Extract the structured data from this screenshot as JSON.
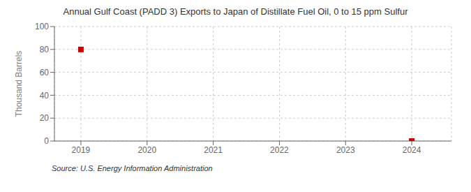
{
  "chart_data": {
    "type": "scatter",
    "title": "Annual Gulf Coast (PADD 3) Exports to Japan of Distillate Fuel Oil, 0 to 15 ppm Sulfur",
    "ylabel": "Thousand Barrels",
    "annotations": [
      "Source: U.S. Energy Information Administration"
    ],
    "x": [
      2019,
      2024
    ],
    "values": [
      80,
      0
    ],
    "color": "#cc0000",
    "marker": "square",
    "xlim": [
      2018.6,
      2024.6
    ],
    "xticks": [
      2019,
      2020,
      2021,
      2022,
      2023,
      2024
    ],
    "ylim": [
      0,
      100
    ],
    "yticks": [
      0,
      20,
      40,
      60,
      80,
      100
    ],
    "grid": true
  }
}
